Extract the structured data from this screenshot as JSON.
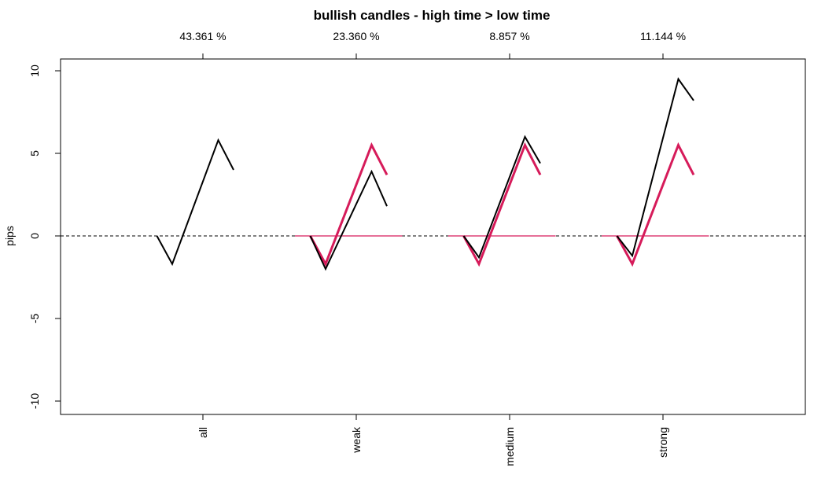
{
  "chart_data": {
    "type": "line",
    "title": "bullish candles - high time > low time",
    "ylabel": "pips",
    "xlabel": "",
    "ylim": [
      -11,
      10.7
    ],
    "y_ticks": [
      -10,
      -5,
      0,
      5,
      10
    ],
    "y_tick_labels": [
      "-10",
      "-5",
      "0",
      "5",
      "10"
    ],
    "xlim": [
      0,
      4.9
    ],
    "categories": [
      "all",
      "weak",
      "medium",
      "strong"
    ],
    "top_labels": [
      "43.361 %",
      "23.360 %",
      "8.857 %",
      "11.144 %"
    ],
    "reference_line": {
      "y": 0,
      "style": "dashed",
      "color": "#000000"
    },
    "colors": {
      "black_series": "#000000",
      "red_series": "#D61B5A"
    },
    "black_series": [
      {
        "category": "all",
        "x": [
          0.7,
          0.8,
          1.1,
          1.2
        ],
        "y": [
          0,
          -1.7,
          5.8,
          4.0
        ]
      },
      {
        "category": "weak",
        "x": [
          1.7,
          1.8,
          2.1,
          2.2
        ],
        "y": [
          0,
          -2.0,
          3.9,
          1.8
        ]
      },
      {
        "category": "medium",
        "x": [
          2.7,
          2.8,
          3.1,
          3.2
        ],
        "y": [
          0,
          -1.3,
          6.0,
          4.4
        ]
      },
      {
        "category": "strong",
        "x": [
          2.7,
          2.8,
          3.1,
          3.2
        ],
        "y": [
          0,
          -1.2,
          9.5,
          8.2
        ],
        "offset": 1
      }
    ],
    "red_series": [
      {
        "category": "weak",
        "x": [
          1.6,
          1.7,
          1.8,
          2.1,
          2.2,
          2.3
        ],
        "y": [
          0,
          0,
          -1.7,
          5.5,
          3.7,
          0
        ],
        "baseline_end": 2.3
      },
      {
        "category": "medium",
        "x": [
          2.6,
          2.7,
          2.8,
          3.1,
          3.2,
          3.3
        ],
        "y": [
          0,
          0,
          -1.7,
          5.5,
          3.7,
          0
        ],
        "baseline_end": 3.3
      },
      {
        "category": "strong",
        "x": [
          3.6,
          3.7,
          3.8,
          4.1,
          4.2,
          4.3
        ],
        "y": [
          0,
          0,
          -1.7,
          5.5,
          3.7,
          0
        ],
        "baseline_end": 4.3
      }
    ]
  }
}
